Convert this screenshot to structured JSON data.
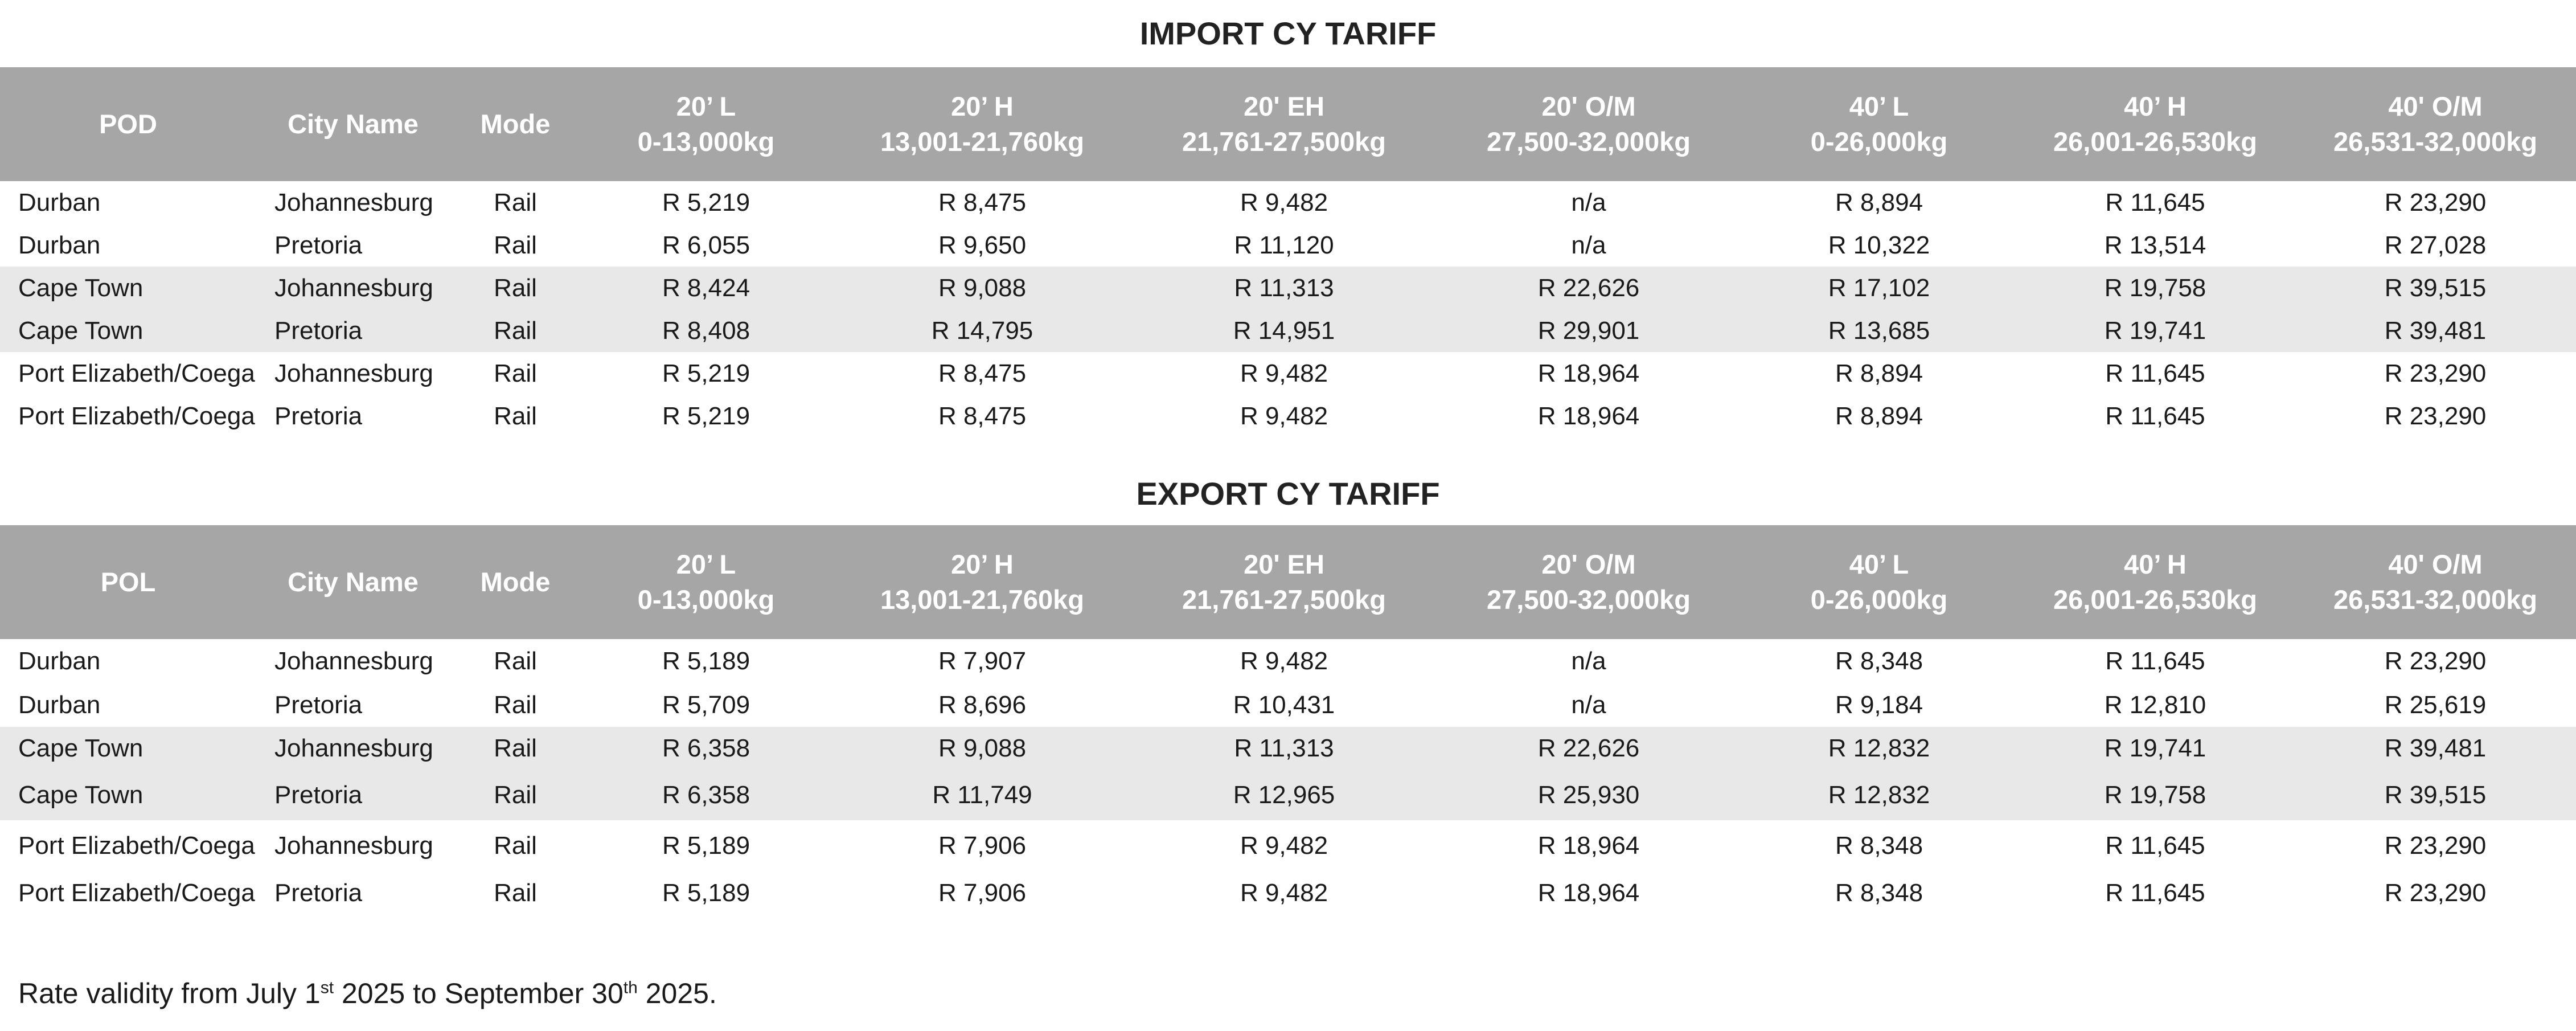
{
  "import": {
    "title": "IMPORT CY TARIFF",
    "headers": [
      {
        "line1": "POD",
        "line2": ""
      },
      {
        "line1": "City Name",
        "line2": ""
      },
      {
        "line1": "Mode",
        "line2": ""
      },
      {
        "line1": "20’ L",
        "line2": "0-13,000kg"
      },
      {
        "line1": "20’ H",
        "line2": "13,001-21,760kg"
      },
      {
        "line1": "20' EH",
        "line2": "21,761-27,500kg"
      },
      {
        "line1": "20' O/M",
        "line2": "27,500-32,000kg"
      },
      {
        "line1": "40’ L",
        "line2": "0-26,000kg"
      },
      {
        "line1": "40’ H",
        "line2": "26,001-26,530kg"
      },
      {
        "line1": "40' O/M",
        "line2": "26,531-32,000kg"
      }
    ],
    "rows": [
      [
        "Durban",
        "Johannesburg",
        "Rail",
        "R 5,219",
        "R 8,475",
        "R 9,482",
        "n/a",
        "R 8,894",
        "R 11,645",
        "R 23,290"
      ],
      [
        "Durban",
        "Pretoria",
        "Rail",
        "R 6,055",
        "R 9,650",
        "R 11,120",
        "n/a",
        "R 10,322",
        "R 13,514",
        "R 27,028"
      ],
      [
        "Cape Town",
        "Johannesburg",
        "Rail",
        "R 8,424",
        "R 9,088",
        "R 11,313",
        "R 22,626",
        "R 17,102",
        "R 19,758",
        "R 39,515"
      ],
      [
        "Cape Town",
        "Pretoria",
        "Rail",
        "R 8,408",
        "R 14,795",
        "R 14,951",
        "R 29,901",
        "R 13,685",
        "R 19,741",
        "R 39,481"
      ],
      [
        "Port Elizabeth/Coega",
        "Johannesburg",
        "Rail",
        "R 5,219",
        "R 8,475",
        "R 9,482",
        "R 18,964",
        "R 8,894",
        "R 11,645",
        "R 23,290"
      ],
      [
        "Port Elizabeth/Coega",
        "Pretoria",
        "Rail",
        "R 5,219",
        "R 8,475",
        "R 9,482",
        "R 18,964",
        "R 8,894",
        "R 11,645",
        "R 23,290"
      ]
    ]
  },
  "export": {
    "title": "EXPORT CY TARIFF",
    "headers": [
      {
        "line1": "POL",
        "line2": ""
      },
      {
        "line1": "City Name",
        "line2": ""
      },
      {
        "line1": "Mode",
        "line2": ""
      },
      {
        "line1": "20’ L",
        "line2": "0-13,000kg"
      },
      {
        "line1": "20’ H",
        "line2": "13,001-21,760kg"
      },
      {
        "line1": "20' EH",
        "line2": "21,761-27,500kg"
      },
      {
        "line1": "20' O/M",
        "line2": "27,500-32,000kg"
      },
      {
        "line1": "40’ L",
        "line2": "0-26,000kg"
      },
      {
        "line1": "40’ H",
        "line2": "26,001-26,530kg"
      },
      {
        "line1": "40' O/M",
        "line2": "26,531-32,000kg"
      }
    ],
    "rows": [
      [
        "Durban",
        "Johannesburg",
        "Rail",
        "R 5,189",
        "R 7,907",
        "R 9,482",
        "n/a",
        "R 8,348",
        "R 11,645",
        "R 23,290"
      ],
      [
        "Durban",
        "Pretoria",
        "Rail",
        "R 5,709",
        "R 8,696",
        "R 10,431",
        "n/a",
        "R 9,184",
        "R 12,810",
        "R 25,619"
      ],
      [
        "Cape Town",
        "Johannesburg",
        "Rail",
        "R 6,358",
        "R 9,088",
        "R 11,313",
        "R 22,626",
        "R 12,832",
        "R 19,741",
        "R 39,481"
      ],
      [
        "Cape Town",
        "Pretoria",
        "Rail",
        "R 6,358",
        "R 11,749",
        "R 12,965",
        "R 25,930",
        "R 12,832",
        "R 19,758",
        "R 39,515"
      ],
      [
        "Port Elizabeth/Coega",
        "Johannesburg",
        "Rail",
        "R 5,189",
        "R 7,906",
        "R 9,482",
        "R 18,964",
        "R 8,348",
        "R 11,645",
        "R 23,290"
      ],
      [
        "Port Elizabeth/Coega",
        "Pretoria",
        "Rail",
        "R 5,189",
        "R 7,906",
        "R 9,482",
        "R 18,964",
        "R 8,348",
        "R 11,645",
        "R 23,290"
      ]
    ]
  },
  "footnote": {
    "prefix": "Rate validity from July 1",
    "sup1": "st",
    "middle": " 2025 to September 30",
    "sup2": "th",
    "suffix": " 2025."
  },
  "colors": {
    "header_bg": "#a6a6a6",
    "header_text": "#ffffff",
    "row_shade": "#e8e8e8"
  }
}
